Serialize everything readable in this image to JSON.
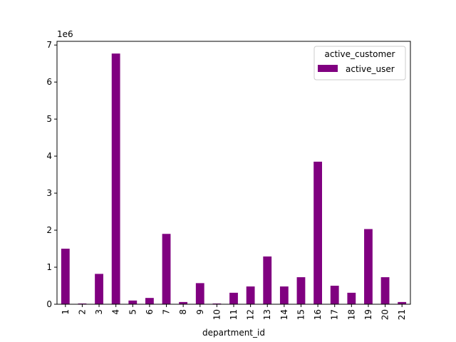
{
  "chart_data": {
    "type": "bar",
    "categories": [
      "1",
      "2",
      "3",
      "4",
      "5",
      "6",
      "7",
      "8",
      "9",
      "10",
      "11",
      "12",
      "13",
      "14",
      "15",
      "16",
      "17",
      "18",
      "19",
      "20",
      "21"
    ],
    "series": [
      {
        "name": "active_user",
        "color": "#800080",
        "values": [
          1500000,
          20000,
          820000,
          6770000,
          100000,
          170000,
          1900000,
          60000,
          570000,
          20000,
          310000,
          480000,
          1290000,
          480000,
          730000,
          3850000,
          500000,
          310000,
          2030000,
          730000,
          60000
        ]
      }
    ],
    "xlabel": "department_id",
    "ylabel": "",
    "ylim": [
      0,
      7100000
    ],
    "yticks": [
      0,
      1000000,
      2000000,
      3000000,
      4000000,
      5000000,
      6000000,
      7000000
    ],
    "ytick_labels": [
      "0",
      "1",
      "2",
      "3",
      "4",
      "5",
      "6",
      "7"
    ],
    "y_offset_label": "1e6",
    "legend": {
      "title": "active_customer",
      "placement": "top-right"
    },
    "grid": false
  }
}
